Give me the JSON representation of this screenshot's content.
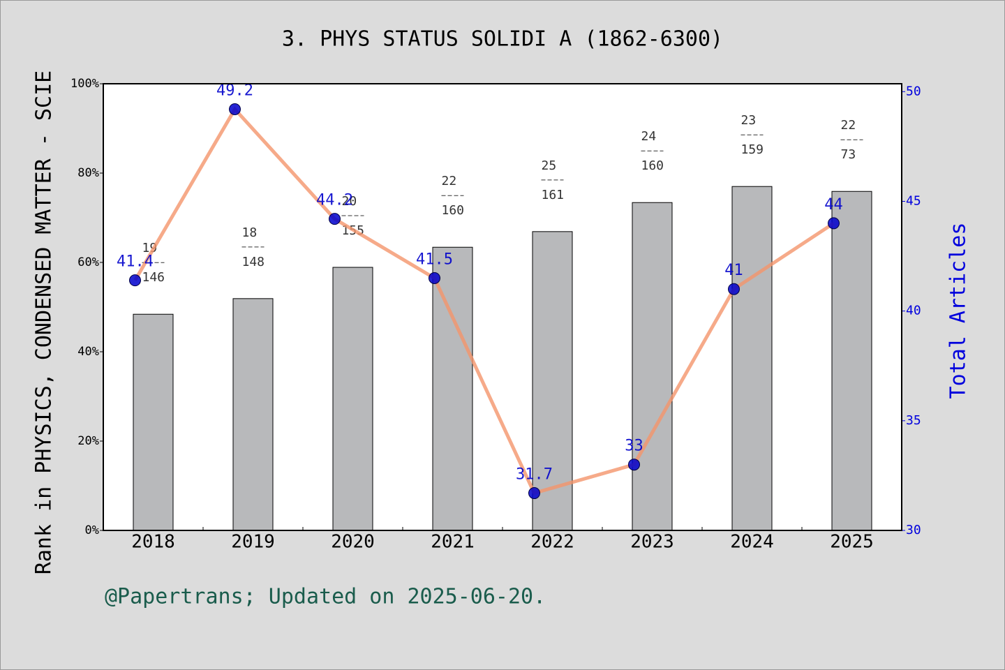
{
  "chart_data": {
    "type": "combo",
    "title": "3. PHYS STATUS SOLIDI A (1862-6300)",
    "ylabel": "Rank in PHYSICS, CONDENSED MATTER - SCIE",
    "y2label": "Total Articles",
    "footer": "@Papertrans; Updated on 2025-06-20.",
    "categories": [
      "2018",
      "2019",
      "2020",
      "2021",
      "2022",
      "2023",
      "2024",
      "2025"
    ],
    "bars": {
      "color": "#b8b9bb",
      "values": [
        48.4,
        51.9,
        58.9,
        63.4,
        66.9,
        73.4,
        77.0,
        75.9
      ]
    },
    "line": {
      "color": "#f4956c",
      "marker_color": "#0000cc",
      "axis": "y2",
      "values": [
        41.4,
        49.2,
        44.2,
        41.5,
        31.7,
        33,
        41,
        44
      ]
    },
    "ranks": [
      19,
      18,
      20,
      22,
      25,
      24,
      23,
      22
    ],
    "totals": [
      146,
      148,
      155,
      160,
      161,
      160,
      159,
      73
    ],
    "ylim": [
      0,
      100
    ],
    "yticks": [
      {
        "value": 0,
        "label": "0%"
      },
      {
        "value": 20,
        "label": "20%"
      },
      {
        "value": 40,
        "label": "40%"
      },
      {
        "value": 60,
        "label": "60%"
      },
      {
        "value": 80,
        "label": "80%"
      },
      {
        "value": 100,
        "label": "100%"
      }
    ],
    "y2lim": [
      30,
      50.36
    ],
    "y2ticks": [
      30,
      35,
      40,
      45,
      50
    ]
  }
}
